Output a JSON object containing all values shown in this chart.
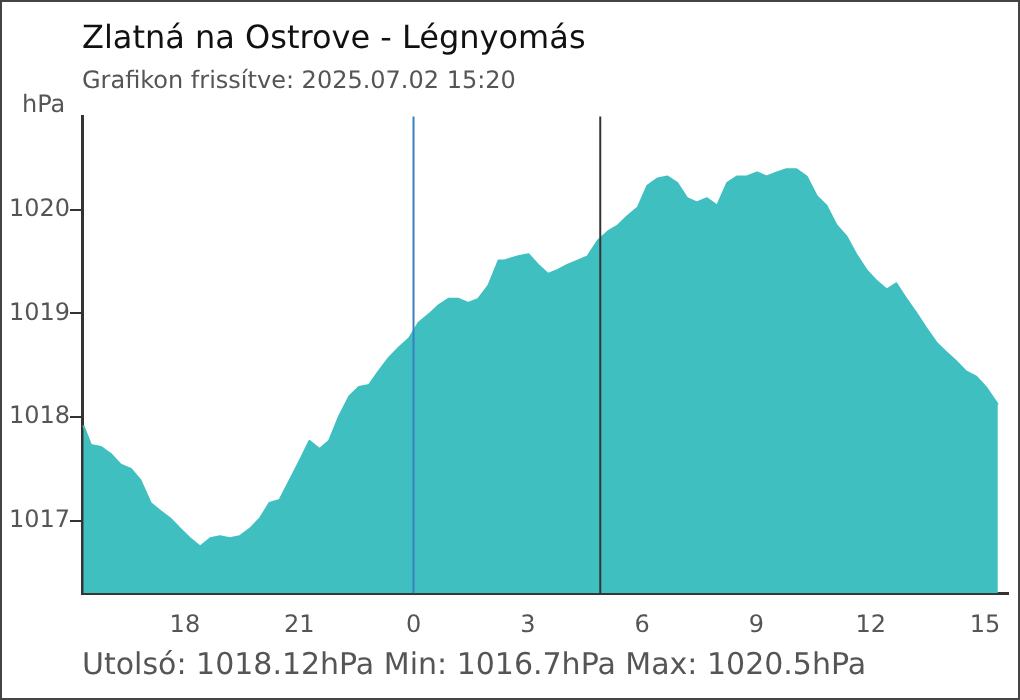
{
  "chart_data": {
    "type": "area",
    "title": "Zlatná na Ostrove - Légnyomás",
    "subtitle": "Grafikon frissítve: 2025.07.02 15:20",
    "ylabel": "hPa",
    "annotations": [
      "Utolsó: 1018.12hPa  Min: 1016.7hPa  Max: 1020.5hPa"
    ],
    "x": [
      "2025-07-01T15:20",
      "2025-07-01T15:32",
      "2025-07-01T15:48",
      "2025-07-01T16:04",
      "2025-07-01T16:19",
      "2025-07-01T16:35",
      "2025-07-01T16:50",
      "2025-07-01T17:06",
      "2025-07-01T17:22",
      "2025-07-01T17:37",
      "2025-07-01T17:53",
      "2025-07-01T18:08",
      "2025-07-01T18:24",
      "2025-07-01T18:40",
      "2025-07-01T18:55",
      "2025-07-01T19:11",
      "2025-07-01T19:26",
      "2025-07-01T19:42",
      "2025-07-01T19:58",
      "2025-07-01T20:13",
      "2025-07-01T20:29",
      "2025-07-01T20:45",
      "2025-07-01T21:01",
      "2025-07-01T21:16",
      "2025-07-01T21:32",
      "2025-07-01T21:47",
      "2025-07-01T22:03",
      "2025-07-01T22:19",
      "2025-07-01T22:34",
      "2025-07-01T22:50",
      "2025-07-01T23:05",
      "2025-07-01T23:21",
      "2025-07-01T23:37",
      "2025-07-01T23:53",
      "2025-07-02T00:08",
      "2025-07-02T00:24",
      "2025-07-02T00:40",
      "2025-07-02T00:55",
      "2025-07-02T01:11",
      "2025-07-02T01:26",
      "2025-07-02T01:42",
      "2025-07-02T01:58",
      "2025-07-02T02:14",
      "2025-07-02T02:23",
      "2025-07-02T02:45",
      "2025-07-02T03:01",
      "2025-07-02T03:16",
      "2025-07-02T03:32",
      "2025-07-02T03:47",
      "2025-07-02T04:03",
      "2025-07-02T04:19",
      "2025-07-02T04:34",
      "2025-07-02T04:50",
      "2025-07-02T05:06",
      "2025-07-02T05:22",
      "2025-07-02T05:37",
      "2025-07-02T05:53",
      "2025-07-02T06:08",
      "2025-07-02T06:24",
      "2025-07-02T06:40",
      "2025-07-02T06:55",
      "2025-07-02T07:11",
      "2025-07-02T07:26",
      "2025-07-02T07:42",
      "2025-07-02T07:58",
      "2025-07-02T08:14",
      "2025-07-02T08:29",
      "2025-07-02T08:45",
      "2025-07-02T09:01",
      "2025-07-02T09:16",
      "2025-07-02T09:32",
      "2025-07-02T09:47",
      "2025-07-02T10:03",
      "2025-07-02T10:19",
      "2025-07-02T10:35",
      "2025-07-02T10:50",
      "2025-07-02T11:06",
      "2025-07-02T11:22",
      "2025-07-02T11:37",
      "2025-07-02T11:53",
      "2025-07-02T12:08",
      "2025-07-02T12:25",
      "2025-07-02T12:40",
      "2025-07-02T12:56",
      "2025-07-02T13:11",
      "2025-07-02T13:27",
      "2025-07-02T13:43",
      "2025-07-02T13:58",
      "2025-07-02T14:14",
      "2025-07-02T14:30",
      "2025-07-02T14:46",
      "2025-07-02T15:01",
      "2025-07-02T15:20"
    ],
    "series": [
      {
        "color": "#40bfc1",
        "values": [
          1017.92,
          1017.73,
          1017.71,
          1017.64,
          1017.54,
          1017.5,
          1017.39,
          1017.17,
          1017.09,
          1017.02,
          1016.92,
          1016.83,
          1016.75,
          1016.83,
          1016.85,
          1016.83,
          1016.85,
          1016.92,
          1017.02,
          1017.17,
          1017.2,
          1017.39,
          1017.58,
          1017.77,
          1017.69,
          1017.77,
          1018.01,
          1018.2,
          1018.29,
          1018.31,
          1018.44,
          1018.57,
          1018.67,
          1018.76,
          1018.91,
          1018.99,
          1019.08,
          1019.14,
          1019.14,
          1019.1,
          1019.14,
          1019.27,
          1019.51,
          1019.51,
          1019.55,
          1019.57,
          1019.47,
          1019.38,
          1019.42,
          1019.47,
          1019.51,
          1019.55,
          1019.7,
          1019.79,
          1019.85,
          1019.94,
          1020.02,
          1020.23,
          1020.3,
          1020.32,
          1020.26,
          1020.11,
          1020.07,
          1020.11,
          1020.04,
          1020.26,
          1020.32,
          1020.32,
          1020.36,
          1020.32,
          1020.36,
          1020.39,
          1020.39,
          1020.32,
          1020.13,
          1020.04,
          1019.85,
          1019.74,
          1019.57,
          1019.42,
          1019.32,
          1019.23,
          1019.29,
          1019.14,
          1019.01,
          1018.86,
          1018.72,
          1018.63,
          1018.54,
          1018.44,
          1018.39,
          1018.29,
          1018.12
        ]
      }
    ],
    "xlim": [
      "2025-07-01T15:18",
      "2025-07-02T15:36"
    ],
    "xticks": [
      {
        "value": "2025-07-01T18:00",
        "label": "18"
      },
      {
        "value": "2025-07-01T21:00",
        "label": "21"
      },
      {
        "value": "2025-07-02T00:00",
        "label": "0"
      },
      {
        "value": "2025-07-02T03:00",
        "label": "3"
      },
      {
        "value": "2025-07-02T06:00",
        "label": "6"
      },
      {
        "value": "2025-07-02T09:00",
        "label": "9"
      },
      {
        "value": "2025-07-02T12:00",
        "label": "12"
      },
      {
        "value": "2025-07-02T15:00",
        "label": "15"
      }
    ],
    "ylim": [
      1016.3,
      1020.9
    ],
    "yticks": [
      1017,
      1018,
      1019,
      1020
    ],
    "ref_lines": [
      {
        "axis": "x",
        "value": "2025-07-02T00:00",
        "color": "#3a7fc0"
      },
      {
        "axis": "x",
        "value": "2025-07-02T04:54",
        "color": "#333333"
      }
    ],
    "grid": false,
    "legend": false
  }
}
